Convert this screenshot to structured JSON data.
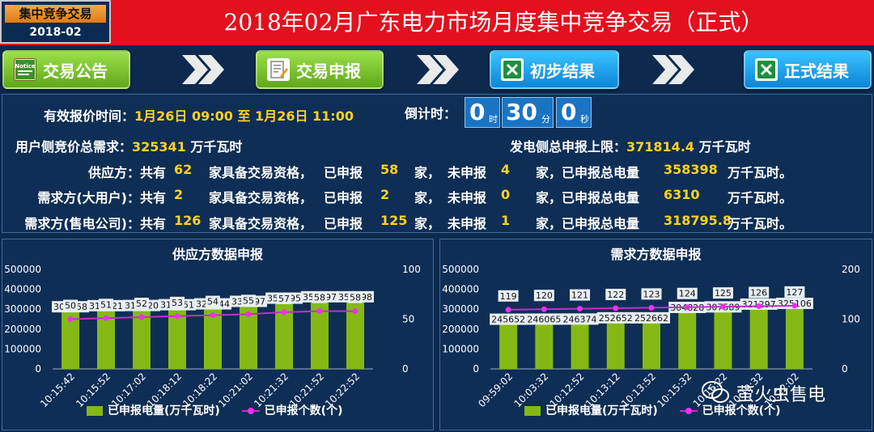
{
  "header": {
    "period_label": "集中竞争交易",
    "period_value": "2018-02",
    "title": "2018年02月广东电力市场月度集中竞争交易（正式）"
  },
  "steps": [
    {
      "label": "交易公告",
      "icon": "notice-icon",
      "color": "#6cb92a"
    },
    {
      "label": "交易申报",
      "icon": "edit-document-icon",
      "color": "#6cb92a"
    },
    {
      "label": "初步结果",
      "icon": "excel-icon",
      "color": "#1aa3ef"
    },
    {
      "label": "正式结果",
      "icon": "excel-icon",
      "color": "#1aa3ef"
    }
  ],
  "info": {
    "valid_time_label": "有效报价时间：",
    "valid_time_value": "1月26日 09:00 至 1月26日 11:00",
    "countdown_label": "倒计时：",
    "countdown": [
      {
        "value": "0",
        "unit": "时"
      },
      {
        "value": "30",
        "unit": "分"
      },
      {
        "value": "0",
        "unit": "秒"
      }
    ],
    "user_demand_label": "用户侧竞价总需求：",
    "user_demand_value": "325341",
    "user_demand_unit": "万千瓦时",
    "gen_limit_label": "发电侧总申报上限：",
    "gen_limit_value": "371814.4",
    "gen_limit_unit": "万千瓦时",
    "t_total": "共有",
    "t_qual": "家具备交易资格，",
    "t_declared": "已申报",
    "t_jia": "家，",
    "t_undeclared": "未申报",
    "t_total_power": "家，已申报总电量",
    "t_unit": "万千瓦时。",
    "rows": [
      {
        "name": "供应方：",
        "total": "62",
        "declared": "58",
        "undeclared": "4",
        "power": "358398"
      },
      {
        "name": "需求方(大用户)：",
        "total": "2",
        "declared": "2",
        "undeclared": "0",
        "power": "6310"
      },
      {
        "name": "需求方(售电公司)：",
        "total": "126",
        "declared": "125",
        "undeclared": "1",
        "power": "318795.8"
      }
    ]
  },
  "colors": {
    "bar": "#84b915",
    "line": "#c42ec8",
    "accent_yellow": "#ffd21e",
    "header_red": "#e3101e"
  },
  "legend": {
    "bar": "已申报电量(万千瓦时)",
    "line": "已申报个数(个)"
  },
  "watermark": "萤火虫售电",
  "chart_data": [
    {
      "type": "bar",
      "title": "供应方数据申报",
      "categories": [
        "10:15:42",
        "10:15:52",
        "10:17:02",
        "10:18:12",
        "10:18:22",
        "10:21:02",
        "10:21:32",
        "10:21:52",
        "10:22:52"
      ],
      "series": [
        {
          "name": "已申报电量(万千瓦时)",
          "type": "bar",
          "axis": "left",
          "values": [
            308258,
            313621,
            314620,
            318551,
            322844,
            335397,
            351395,
            358397,
            358398
          ]
        },
        {
          "name": "已申报个数(个)",
          "type": "line",
          "axis": "right",
          "values": [
            50,
            51,
            52,
            53,
            54,
            55,
            57,
            58,
            58
          ]
        }
      ],
      "ylim": [
        0,
        500000
      ],
      "yticks": [
        0,
        100000,
        200000,
        300000,
        400000,
        500000
      ],
      "y2lim": [
        0,
        100
      ],
      "y2ticks": [
        0,
        50,
        100
      ],
      "legend_position": "bottom"
    },
    {
      "type": "bar",
      "title": "需求方数据申报",
      "categories": [
        "09:59:02",
        "10:03:32",
        "10:12:52",
        "10:13:12",
        "10:13:52",
        "10:15:32",
        "10:16:22",
        "10:19:32",
        "10:22:02"
      ],
      "series": [
        {
          "name": "已申报电量(万千瓦时)",
          "type": "bar",
          "axis": "left",
          "values": [
            245652,
            246065,
            246374,
            252652,
            252662,
            304828,
            307589,
            321297,
            325106
          ]
        },
        {
          "name": "已申报个数(个)",
          "type": "line",
          "axis": "right",
          "values": [
            119,
            120,
            121,
            122,
            123,
            124,
            125,
            126,
            127
          ]
        }
      ],
      "ylim": [
        0,
        500000
      ],
      "yticks": [
        0,
        100000,
        200000,
        300000,
        400000,
        500000
      ],
      "y2lim": [
        0,
        200
      ],
      "y2ticks": [
        0,
        100,
        200
      ],
      "legend_position": "bottom"
    }
  ]
}
